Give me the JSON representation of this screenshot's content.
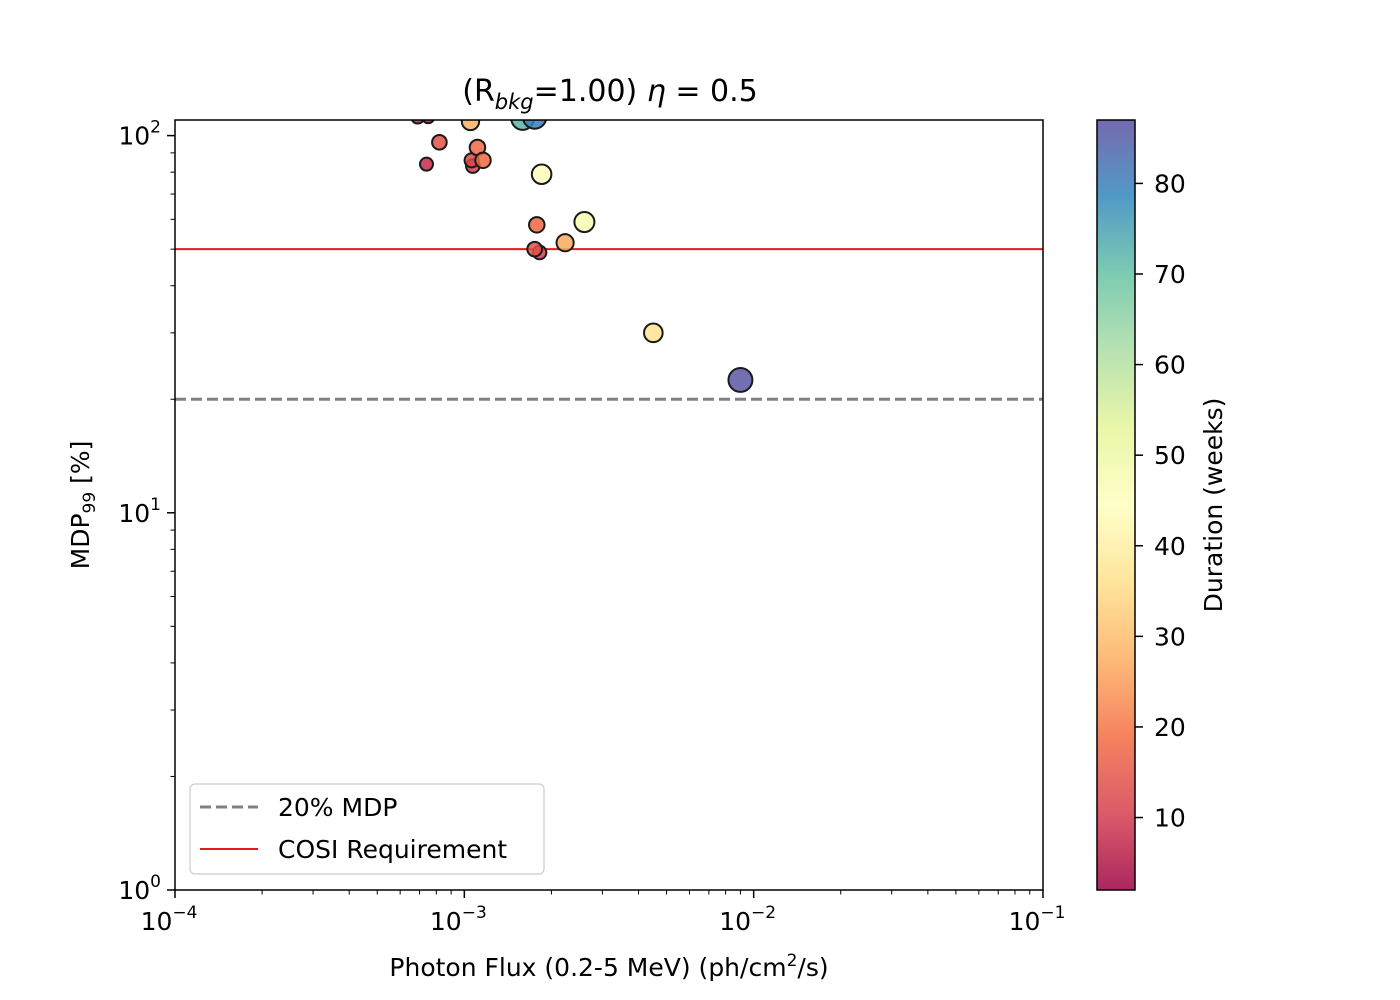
{
  "chart_data": {
    "type": "scatter",
    "title": {
      "prefix": "(R",
      "subscript": "bkg",
      "suffix": "=1.00) ",
      "eta_symbol": "η",
      "eta_text": " = 0.5"
    },
    "xlabel": {
      "before": "Photon Flux (0.2-5 MeV) (ph/cm",
      "superscript": "2",
      "after": "/s)"
    },
    "ylabel": {
      "before": "MDP",
      "subscript": "99",
      "after": " [%]"
    },
    "x_scale": "log",
    "y_scale": "log",
    "xlim": [
      0.0001,
      0.1
    ],
    "ylim": [
      1,
      110
    ],
    "x_ticks": [
      {
        "value": 0.0001,
        "base": "10",
        "exp": "−4"
      },
      {
        "value": 0.001,
        "base": "10",
        "exp": "−3"
      },
      {
        "value": 0.01,
        "base": "10",
        "exp": "−2"
      },
      {
        "value": 0.1,
        "base": "10",
        "exp": "−1"
      }
    ],
    "y_ticks": [
      {
        "value": 1,
        "base": "10",
        "exp": "0"
      },
      {
        "value": 10,
        "base": "10",
        "exp": "1"
      },
      {
        "value": 100,
        "base": "10",
        "exp": "2"
      }
    ],
    "colorbar": {
      "label": "Duration (weeks)",
      "range": [
        2,
        87
      ],
      "ticks": [
        "10",
        "20",
        "30",
        "40",
        "50",
        "60",
        "70",
        "80"
      ],
      "colormap": [
        "#9e0142",
        "#d53e4f",
        "#f46d43",
        "#fdae61",
        "#fee08b",
        "#ffffbf",
        "#e6f598",
        "#abdda4",
        "#66c2a5",
        "#3288bd",
        "#5e4fa2"
      ]
    },
    "reference_lines": [
      {
        "name": "20% MDP",
        "y": 20,
        "color": "#808080",
        "style": "dashed"
      },
      {
        "name": "COSI Requirement",
        "y": 50,
        "color": "#e41a1c",
        "style": "solid"
      }
    ],
    "legend_position": "lower-left",
    "points": [
      {
        "x": 0.00069,
        "y": 112,
        "duration": 8
      },
      {
        "x": 0.00075,
        "y": 112,
        "duration": 6
      },
      {
        "x": 0.00105,
        "y": 109,
        "duration": 28
      },
      {
        "x": 0.00082,
        "y": 96,
        "duration": 14
      },
      {
        "x": 0.00111,
        "y": 93,
        "duration": 18
      },
      {
        "x": 0.00074,
        "y": 84,
        "duration": 8
      },
      {
        "x": 0.00106,
        "y": 86,
        "duration": 12
      },
      {
        "x": 0.00116,
        "y": 86,
        "duration": 18
      },
      {
        "x": 0.00107,
        "y": 83,
        "duration": 10
      },
      {
        "x": 0.00185,
        "y": 79,
        "duration": 44
      },
      {
        "x": 0.00159,
        "y": 111,
        "duration": 72
      },
      {
        "x": 0.00175,
        "y": 112,
        "duration": 80
      },
      {
        "x": 0.00178,
        "y": 58,
        "duration": 18
      },
      {
        "x": 0.0026,
        "y": 59,
        "duration": 48
      },
      {
        "x": 0.00223,
        "y": 52,
        "duration": 27
      },
      {
        "x": 0.00175,
        "y": 50,
        "duration": 14
      },
      {
        "x": 0.00182,
        "y": 49,
        "duration": 10
      },
      {
        "x": 0.0045,
        "y": 30,
        "duration": 37
      },
      {
        "x": 0.009,
        "y": 22.5,
        "duration": 86
      }
    ]
  }
}
